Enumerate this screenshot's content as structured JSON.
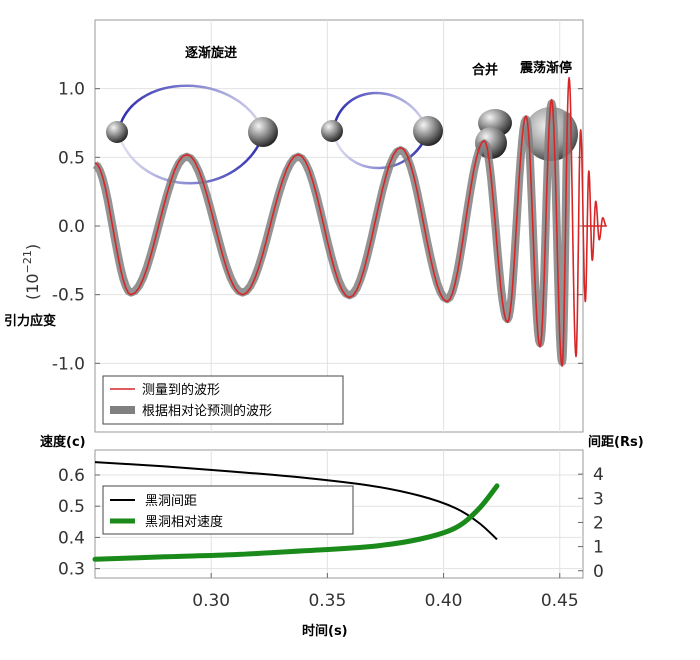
{
  "labels": {
    "stage_inspiral": "逐渐旋进",
    "stage_merge": "合并",
    "stage_ringdown": "震荡渐停",
    "strain_axis": "引力应变",
    "strain_unit": "(10",
    "strain_exp": "−21",
    "strain_close": ")",
    "speed_axis": "速度(c)",
    "sep_axis": "间距(Rs)",
    "time_axis": "时间(s)"
  },
  "chart_data": [
    {
      "type": "line",
      "xlim": [
        0.25,
        0.46
      ],
      "ylim": [
        -1.5,
        1.5
      ],
      "yticks": [
        "1.0",
        "0.5",
        "0.0",
        "-0.5",
        "-1.0"
      ],
      "ytick_values": [
        1.0,
        0.5,
        0.0,
        -0.5,
        -1.0
      ],
      "grid": true,
      "legend": "bottom-left",
      "series": [
        {
          "name": "测量到的波形",
          "color": "#d62728",
          "peaks": [
            [
              0.25,
              0.46
            ],
            [
              0.2655,
              -0.5
            ],
            [
              0.2895,
              0.52
            ],
            [
              0.3135,
              -0.5
            ],
            [
              0.3375,
              0.52
            ],
            [
              0.3595,
              -0.52
            ],
            [
              0.3815,
              0.57
            ],
            [
              0.4015,
              -0.55
            ],
            [
              0.4175,
              0.62
            ],
            [
              0.4275,
              -0.7
            ],
            [
              0.4355,
              0.8
            ],
            [
              0.4415,
              -0.88
            ],
            [
              0.4465,
              0.92
            ],
            [
              0.451,
              -1.02
            ],
            [
              0.454,
              1.08
            ],
            [
              0.457,
              -0.95
            ],
            [
              0.459,
              0.7
            ],
            [
              0.461,
              -0.55
            ],
            [
              0.4625,
              0.4
            ],
            [
              0.464,
              -0.25
            ],
            [
              0.4655,
              0.18
            ],
            [
              0.467,
              -0.1
            ],
            [
              0.4685,
              0.06
            ],
            [
              0.47,
              0.0
            ]
          ]
        },
        {
          "name": "根据相对论预测的波形",
          "color": "#808080"
        }
      ]
    },
    {
      "type": "line",
      "xlim": [
        0.25,
        0.46
      ],
      "xticks": [
        "0.30",
        "0.35",
        "0.40",
        "0.45"
      ],
      "xtick_values": [
        0.3,
        0.35,
        0.4,
        0.45
      ],
      "ylim_left": [
        0.27,
        0.68
      ],
      "yticks_left": [
        "0.6",
        "0.5",
        "0.4",
        "0.3"
      ],
      "ytick_left_values": [
        0.6,
        0.5,
        0.4,
        0.3
      ],
      "ylim_right": [
        -0.3,
        5.0
      ],
      "yticks_right": [
        "4",
        "3",
        "2",
        "1",
        "0"
      ],
      "ytick_right_values": [
        4,
        3,
        2,
        1,
        0
      ],
      "grid": true,
      "legend": "left",
      "series": [
        {
          "name": "黑洞间距",
          "color": "#000000",
          "axis": "right",
          "x": [
            0.25,
            0.28,
            0.31,
            0.34,
            0.37,
            0.39,
            0.405,
            0.415,
            0.423
          ],
          "y": [
            4.5,
            4.32,
            4.1,
            3.85,
            3.5,
            3.1,
            2.6,
            2.0,
            1.3
          ]
        },
        {
          "name": "黑洞相对速度",
          "color": "#1a8a1a",
          "axis": "left",
          "x": [
            0.25,
            0.28,
            0.31,
            0.34,
            0.37,
            0.39,
            0.405,
            0.415,
            0.423
          ],
          "y": [
            0.33,
            0.338,
            0.345,
            0.357,
            0.372,
            0.395,
            0.43,
            0.49,
            0.565
          ]
        }
      ]
    }
  ]
}
